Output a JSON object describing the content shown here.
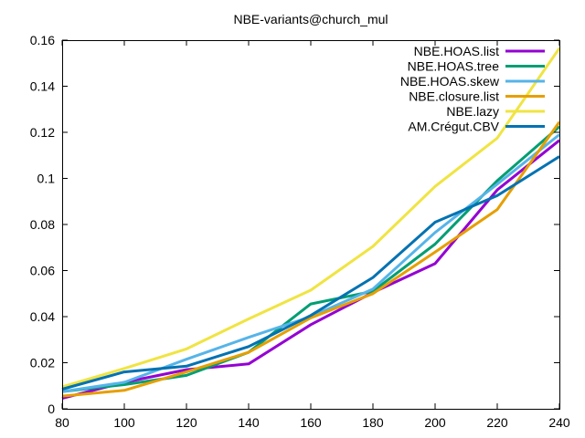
{
  "chart_data": {
    "type": "line",
    "title": "NBE-variants@church_mul",
    "xlabel": "",
    "ylabel": "",
    "xlim": [
      80,
      240
    ],
    "ylim": [
      0,
      0.16
    ],
    "x_ticks": [
      "80",
      "100",
      "120",
      "140",
      "160",
      "180",
      "200",
      "220",
      "240"
    ],
    "y_ticks": [
      "0",
      "0.02",
      "0.04",
      "0.06",
      "0.08",
      "0.1",
      "0.12",
      "0.14",
      "0.16"
    ],
    "legend_position": "top-right",
    "grid": false,
    "x": [
      80,
      100,
      120,
      140,
      160,
      180,
      200,
      220,
      240
    ],
    "series": [
      {
        "name": "NBE.HOAS.list",
        "color": "#9400d3",
        "values": [
          0.0045,
          0.0115,
          0.017,
          0.0195,
          0.0365,
          0.0505,
          0.063,
          0.095,
          0.1165
        ]
      },
      {
        "name": "NBE.HOAS.tree",
        "color": "#009e73",
        "values": [
          0.0075,
          0.0105,
          0.0145,
          0.0245,
          0.0455,
          0.051,
          0.0715,
          0.099,
          0.1225
        ]
      },
      {
        "name": "NBE.HOAS.skew",
        "color": "#56b4e9",
        "values": [
          0.0075,
          0.0115,
          0.0215,
          0.031,
          0.04,
          0.052,
          0.0765,
          0.0975,
          0.119
        ]
      },
      {
        "name": "NBE.closure.list",
        "color": "#e69f00",
        "values": [
          0.0055,
          0.008,
          0.016,
          0.0245,
          0.0395,
          0.05,
          0.068,
          0.0865,
          0.1245
        ]
      },
      {
        "name": "NBE.lazy",
        "color": "#f0e442",
        "values": [
          0.0095,
          0.0175,
          0.026,
          0.039,
          0.0515,
          0.0705,
          0.0965,
          0.1175,
          0.1565
        ]
      },
      {
        "name": "AM.Crégut.CBV",
        "color": "#0072b2",
        "values": [
          0.0085,
          0.016,
          0.0185,
          0.027,
          0.0405,
          0.057,
          0.081,
          0.0925,
          0.1095
        ]
      }
    ]
  }
}
